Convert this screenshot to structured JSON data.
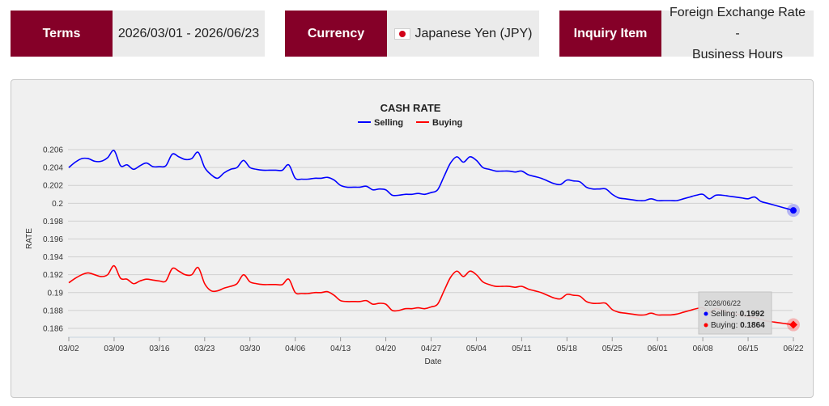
{
  "header": {
    "terms": {
      "label": "Terms",
      "value": "2026/03/01 - 2026/06/23"
    },
    "currency": {
      "label": "Currency",
      "value": "Japanese Yen (JPY)",
      "flag": "japan-flag-icon"
    },
    "inquiry": {
      "label": "Inquiry Item",
      "value": "Foreign Exchange Rate -\nBusiness Hours"
    }
  },
  "colors": {
    "brand": "#850028",
    "selling": "#0000ff",
    "buying": "#ff0000"
  },
  "tooltip": {
    "date": "2026/06/22",
    "selling_label": "Selling: ",
    "selling_value": "0.1992",
    "buying_label": "Buying: ",
    "buying_value": "0.1864"
  },
  "chart_data": {
    "type": "line",
    "title": "CASH RATE",
    "xlabel": "Date",
    "ylabel": "RATE",
    "ylim": [
      0.185,
      0.207
    ],
    "yticks": [
      "0.186",
      "0.188",
      "0.19",
      "0.192",
      "0.194",
      "0.196",
      "0.198",
      "0.2",
      "0.202",
      "0.204",
      "0.206"
    ],
    "x_tick_labels": [
      "03/02",
      "03/09",
      "03/16",
      "03/23",
      "03/30",
      "04/06",
      "04/13",
      "04/20",
      "04/27",
      "05/04",
      "05/11",
      "05/18",
      "05/25",
      "06/01",
      "06/08",
      "06/15",
      "06/22"
    ],
    "grid": true,
    "legend": "top-center",
    "x": [
      "03/02",
      "03/03",
      "03/04",
      "03/05",
      "03/06",
      "03/07",
      "03/08",
      "03/09",
      "03/10",
      "03/11",
      "03/12",
      "03/13",
      "03/14",
      "03/15",
      "03/16",
      "03/17",
      "03/18",
      "03/19",
      "03/20",
      "03/21",
      "03/22",
      "03/23",
      "03/24",
      "03/25",
      "03/26",
      "03/27",
      "03/28",
      "03/29",
      "03/30",
      "03/31",
      "04/01",
      "04/02",
      "04/03",
      "04/04",
      "04/05",
      "04/06",
      "04/07",
      "04/08",
      "04/09",
      "04/10",
      "04/11",
      "04/12",
      "04/13",
      "04/14",
      "04/15",
      "04/16",
      "04/17",
      "04/18",
      "04/19",
      "04/20",
      "04/21",
      "04/22",
      "04/23",
      "04/24",
      "04/25",
      "04/26",
      "04/27",
      "04/28",
      "04/29",
      "04/30",
      "05/01",
      "05/02",
      "05/03",
      "05/04",
      "05/05",
      "05/06",
      "05/07",
      "05/08",
      "05/09",
      "05/10",
      "05/11",
      "05/12",
      "05/13",
      "05/14",
      "05/15",
      "05/16",
      "05/17",
      "05/18",
      "05/19",
      "05/20",
      "05/21",
      "05/22",
      "05/23",
      "05/24",
      "05/25",
      "05/26",
      "05/27",
      "05/28",
      "05/29",
      "05/30",
      "05/31",
      "06/01",
      "06/02",
      "06/03",
      "06/04",
      "06/05",
      "06/06",
      "06/07",
      "06/08",
      "06/09",
      "06/10",
      "06/11",
      "06/12",
      "06/13",
      "06/14",
      "06/15",
      "06/16",
      "06/17",
      "06/18",
      "06/19",
      "06/20",
      "06/21",
      "06/22"
    ],
    "series": [
      {
        "name": "Selling",
        "values": [
          0.204,
          0.2046,
          0.205,
          0.205,
          0.2047,
          0.2047,
          0.2051,
          0.2059,
          0.2042,
          0.2043,
          0.2038,
          0.2042,
          0.2045,
          0.2041,
          0.2041,
          0.2042,
          0.2055,
          0.2052,
          0.2049,
          0.205,
          0.2057,
          0.204,
          0.2032,
          0.2028,
          0.2034,
          0.2038,
          0.204,
          0.2048,
          0.204,
          0.2038,
          0.2037,
          0.2037,
          0.2037,
          0.2037,
          0.2043,
          0.2028,
          0.2027,
          0.2027,
          0.2028,
          0.2028,
          0.2029,
          0.2026,
          0.202,
          0.2018,
          0.2018,
          0.2018,
          0.2019,
          0.2015,
          0.2016,
          0.2015,
          0.2009,
          0.2009,
          0.201,
          0.201,
          0.2011,
          0.201,
          0.2012,
          0.2015,
          0.203,
          0.2045,
          0.2052,
          0.2046,
          0.2052,
          0.2048,
          0.204,
          0.2038,
          0.2036,
          0.2036,
          0.2036,
          0.2035,
          0.2036,
          0.2032,
          0.203,
          0.2028,
          0.2025,
          0.2022,
          0.2021,
          0.2026,
          0.2025,
          0.2024,
          0.2018,
          0.2016,
          0.2016,
          0.2016,
          0.201,
          0.2006,
          0.2005,
          0.2004,
          0.2003,
          0.2003,
          0.2005,
          0.2003,
          0.2003,
          0.2003,
          0.2003,
          0.2005,
          0.2007,
          0.2009,
          0.201,
          0.2005,
          0.2009,
          0.2009,
          0.2008,
          0.2007,
          0.2006,
          0.2005,
          0.2007,
          0.2002,
          0.2,
          0.1998,
          0.1996,
          0.1994,
          0.1992
        ]
      },
      {
        "name": "Buying",
        "values": [
          0.1911,
          0.1916,
          0.192,
          0.1922,
          0.192,
          0.1918,
          0.192,
          0.193,
          0.1916,
          0.1915,
          0.191,
          0.1913,
          0.1915,
          0.1914,
          0.1913,
          0.1913,
          0.1927,
          0.1924,
          0.192,
          0.192,
          0.1928,
          0.191,
          0.1902,
          0.1902,
          0.1905,
          0.1907,
          0.191,
          0.192,
          0.1912,
          0.191,
          0.1909,
          0.1909,
          0.1909,
          0.1909,
          0.1915,
          0.19,
          0.1899,
          0.1899,
          0.19,
          0.19,
          0.1901,
          0.1897,
          0.1891,
          0.189,
          0.189,
          0.189,
          0.1891,
          0.1887,
          0.1888,
          0.1887,
          0.188,
          0.188,
          0.1882,
          0.1882,
          0.1883,
          0.1882,
          0.1884,
          0.1887,
          0.1902,
          0.1917,
          0.1924,
          0.1918,
          0.1924,
          0.192,
          0.1912,
          0.1909,
          0.1907,
          0.1907,
          0.1907,
          0.1906,
          0.1907,
          0.1904,
          0.1902,
          0.19,
          0.1897,
          0.1894,
          0.1893,
          0.1898,
          0.1897,
          0.1896,
          0.189,
          0.1888,
          0.1888,
          0.1888,
          0.1881,
          0.1878,
          0.1877,
          0.1876,
          0.1875,
          0.1875,
          0.1877,
          0.1875,
          0.1875,
          0.1875,
          0.1876,
          0.1878,
          0.188,
          0.1882,
          0.1883,
          0.1878,
          0.1882,
          0.188,
          0.1878,
          0.1876,
          0.1875,
          0.1873,
          0.1872,
          0.187,
          0.1868,
          0.1867,
          0.1866,
          0.1865,
          0.1864
        ]
      }
    ]
  }
}
